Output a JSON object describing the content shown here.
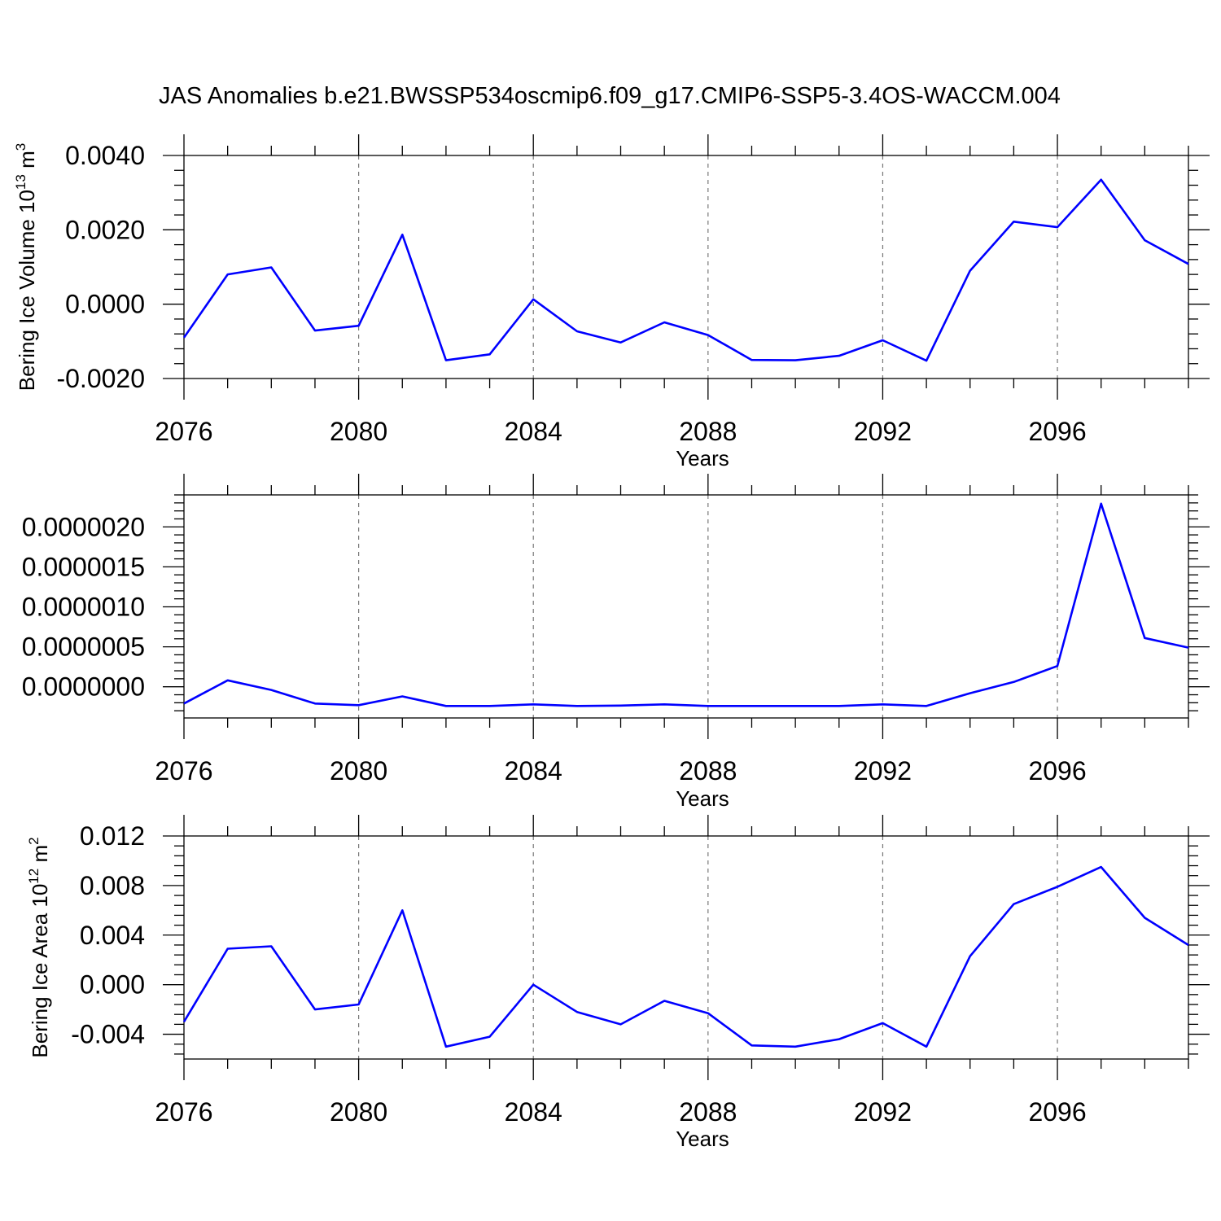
{
  "title": "JAS Anomalies b.e21.BWSSP534oscmip6.f09_g17.CMIP6-SSP5-3.4OS-WACCM.004",
  "colors": {
    "series": "#0000ff",
    "grid": "#777777",
    "axes": "#000000",
    "background": "#ffffff"
  },
  "chart_data": [
    {
      "type": "line",
      "title": "JAS Anomalies b.e21.BWSSP534oscmip6.f09_g17.CMIP6-SSP5-3.4OS-WACCM.004",
      "xlabel": "Years",
      "ylabel": {
        "text": "Bering Ice Volume 10",
        "sup": "13",
        "unit": " m",
        "unit_sup": "3"
      },
      "x": [
        2076,
        2077,
        2078,
        2079,
        2080,
        2081,
        2082,
        2083,
        2084,
        2085,
        2086,
        2087,
        2088,
        2089,
        2090,
        2091,
        2092,
        2093,
        2094,
        2095,
        2096,
        2097,
        2098,
        2099
      ],
      "values": [
        -0.0009,
        0.0008,
        0.00099,
        -0.00071,
        -0.00058,
        0.00187,
        -0.00151,
        -0.00135,
        0.00013,
        -0.00073,
        -0.00103,
        -0.00049,
        -0.00083,
        -0.0015,
        -0.00151,
        -0.00139,
        -0.00097,
        -0.00152,
        0.0009,
        0.00222,
        0.00207,
        0.00335,
        0.00172,
        0.00108
      ],
      "xlim": [
        2076,
        2099
      ],
      "ylim": [
        -0.002,
        0.004
      ],
      "xticks": [
        "2076",
        "2080",
        "2084",
        "2088",
        "2092",
        "2096"
      ],
      "yticks": [
        "0.0040",
        "0.0020",
        "0.0000",
        "-0.0020"
      ],
      "grid": "vertical dashed at major x ticks"
    },
    {
      "type": "line",
      "xlabel": "Years",
      "ylabel": null,
      "x": [
        2076,
        2077,
        2078,
        2079,
        2080,
        2081,
        2082,
        2083,
        2084,
        2085,
        2086,
        2087,
        2088,
        2089,
        2090,
        2091,
        2092,
        2093,
        2094,
        2095,
        2096,
        2097,
        2098,
        2099
      ],
      "values": [
        -2.1e-07,
        8e-08,
        -4e-08,
        -2.1e-07,
        -2.3e-07,
        -1.2e-07,
        -2.4e-07,
        -2.4e-07,
        -2.2e-07,
        -2.4e-07,
        -2.35e-07,
        -2.2e-07,
        -2.4e-07,
        -2.4e-07,
        -2.4e-07,
        -2.4e-07,
        -2.2e-07,
        -2.4e-07,
        -8e-08,
        6e-08,
        2.6e-07,
        2.29e-06,
        6.1e-07,
        4.9e-07
      ],
      "xlim": [
        2076,
        2099
      ],
      "ylim": [
        -3.9e-07,
        2.4e-06
      ],
      "xticks": [
        "2076",
        "2080",
        "2084",
        "2088",
        "2092",
        "2096"
      ],
      "yticks": [
        "0.0000020",
        "0.0000015",
        "0.0000010",
        "0.0000005",
        "0.0000000"
      ],
      "grid": "vertical dashed at major x ticks"
    },
    {
      "type": "line",
      "xlabel": "Years",
      "ylabel": {
        "text": "Bering Ice Area 10",
        "sup": "12",
        "unit": " m",
        "unit_sup": "2"
      },
      "x": [
        2076,
        2077,
        2078,
        2079,
        2080,
        2081,
        2082,
        2083,
        2084,
        2085,
        2086,
        2087,
        2088,
        2089,
        2090,
        2091,
        2092,
        2093,
        2094,
        2095,
        2096,
        2097,
        2098,
        2099
      ],
      "values": [
        -0.003,
        0.0029,
        0.0031,
        -0.002,
        -0.0016,
        0.006,
        -0.005,
        -0.0042,
        0.0,
        -0.0022,
        -0.0032,
        -0.0013,
        -0.0023,
        -0.0049,
        -0.005,
        -0.0044,
        -0.0031,
        -0.005,
        0.0023,
        0.0065,
        0.0079,
        0.0095,
        0.0054,
        0.0032
      ],
      "xlim": [
        2076,
        2099
      ],
      "ylim": [
        -0.006,
        0.012
      ],
      "xticks": [
        "2076",
        "2080",
        "2084",
        "2088",
        "2092",
        "2096"
      ],
      "yticks": [
        "0.012",
        "0.008",
        "0.004",
        "0.000",
        "-0.004"
      ],
      "grid": "vertical dashed at major x ticks"
    }
  ]
}
